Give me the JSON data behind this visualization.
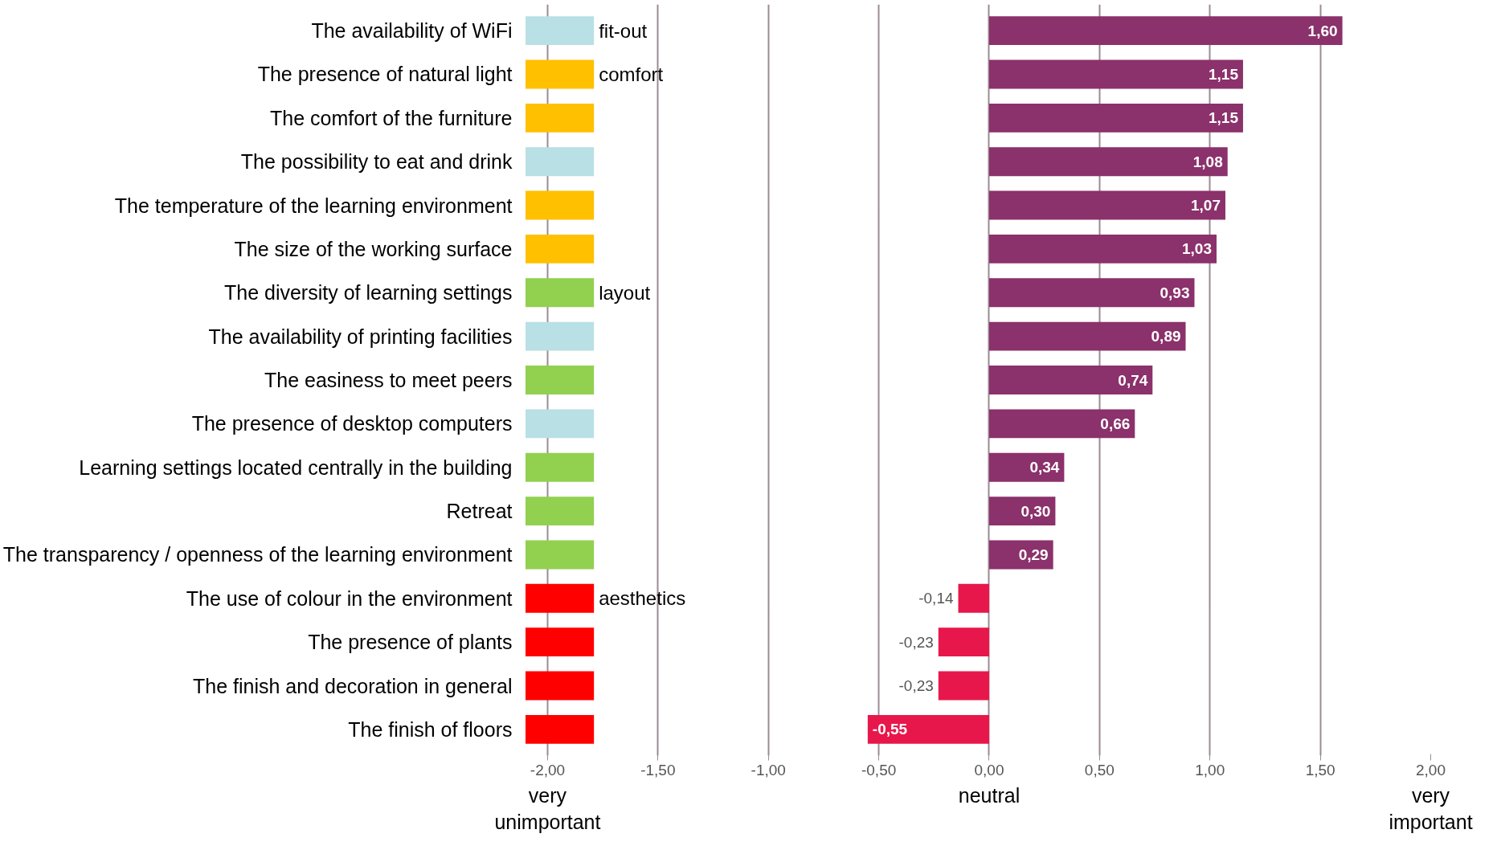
{
  "chart_data": {
    "type": "bar",
    "orientation": "horizontal",
    "categories": [
      "The availability of WiFi",
      "The presence of natural light",
      "The comfort of the furniture",
      "The possibility to eat and drink",
      "The temperature of the learning environment",
      "The size of the working surface",
      "The diversity of learning settings",
      "The availability of printing facilities",
      "The easiness to meet peers",
      "The presence of desktop computers",
      "Learning settings located centrally in the building",
      "Retreat",
      "The transparency / openness of the learning environment",
      "The use of colour in the environment",
      "The presence of plants",
      "The finish and decoration in general",
      "The finish of floors"
    ],
    "series": [
      {
        "values": [
          0.31,
          0.31,
          0.31,
          0.31,
          0.31,
          0.31,
          0.31,
          0.31,
          0.31,
          0.31,
          0.31,
          0.31,
          0.31,
          0.31,
          0.31,
          0.31,
          0.31
        ],
        "base": [
          -2.1,
          -2.1,
          -2.1,
          -2.1,
          -2.1,
          -2.1,
          -2.1,
          -2.1,
          -2.1,
          -2.1,
          -2.1,
          -2.1,
          -2.1,
          -2.1,
          -2.1,
          -2.1,
          -2.1
        ],
        "colors": [
          "#b9e0e4",
          "#ffc000",
          "#ffc000",
          "#b9e0e4",
          "#ffc000",
          "#ffc000",
          "#92d050",
          "#b9e0e4",
          "#92d050",
          "#b9e0e4",
          "#92d050",
          "#92d050",
          "#92d050",
          "#ff0000",
          "#ff0000",
          "#ff0000",
          "#ff0000"
        ]
      },
      {
        "values": [
          1.6,
          1.15,
          1.15,
          1.08,
          1.07,
          1.03,
          0.93,
          0.89,
          0.74,
          0.66,
          0.34,
          0.3,
          0.29,
          -0.14,
          -0.23,
          -0.23,
          -0.55
        ],
        "colors": [
          "#8b316b",
          "#8b316b",
          "#8b316b",
          "#8b316b",
          "#8b316b",
          "#8b316b",
          "#8b316b",
          "#8b316b",
          "#8b316b",
          "#8b316b",
          "#8b316b",
          "#8b316b",
          "#8b316b",
          "#e8174b",
          "#e8174b",
          "#e8174b",
          "#e8174b"
        ],
        "value_labels": [
          "1,60",
          "1,15",
          "1,15",
          "1,08",
          "1,07",
          "1,03",
          "0,93",
          "0,89",
          "0,74",
          "0,66",
          "0,34",
          "0,30",
          "0,29",
          "-0,14",
          "-0,23",
          "-0,23",
          "-0,55"
        ]
      }
    ],
    "xlim": [
      -2.12,
      2.0
    ],
    "xticks": [
      {
        "value": -2,
        "label": "-2,00"
      },
      {
        "value": -1.5,
        "label": "-1,50"
      },
      {
        "value": -1,
        "label": "-1,00"
      },
      {
        "value": -0.5,
        "label": "-0,50"
      },
      {
        "value": 0,
        "label": "0,00"
      },
      {
        "value": 0.5,
        "label": "0,50"
      },
      {
        "value": 1,
        "label": "1,00"
      },
      {
        "value": 1.5,
        "label": "1,50"
      },
      {
        "value": 2,
        "label": "2,00"
      }
    ],
    "grid": "x",
    "annotations": [
      "fit-out",
      "comfort",
      "layout",
      "aesthetics",
      "very unimportant",
      "neutral",
      "very important"
    ]
  }
}
